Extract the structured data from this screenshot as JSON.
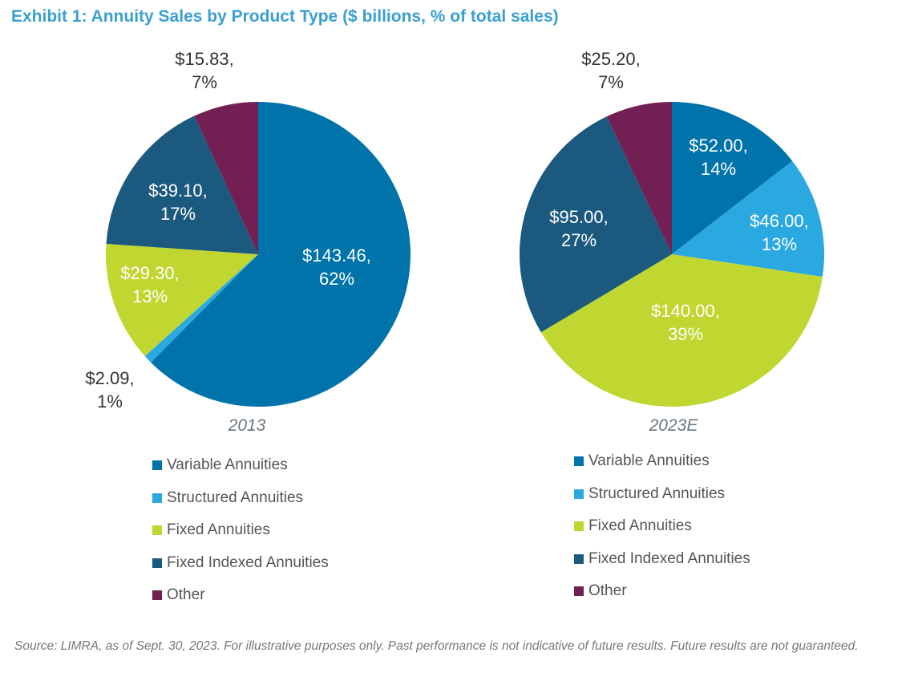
{
  "chart_data": [
    {
      "type": "pie",
      "title": "Exhibit 1: Annuity Sales by Product Type ($ billions, % of total sales)",
      "subtitle": "2013",
      "categories": [
        "Variable Annuities",
        "Structured Annuities",
        "Fixed Annuities",
        "Fixed Indexed Annuities",
        "Other"
      ],
      "values": [
        143.46,
        2.09,
        29.3,
        39.1,
        15.83
      ],
      "percents": [
        62,
        1,
        13,
        17,
        7
      ],
      "labels": [
        "$143.46,\n62%",
        "$2.09,\n1%",
        "$29.30,\n13%",
        "$39.10,\n17%",
        "$15.83,\n7%"
      ],
      "colors": [
        "#0073aa",
        "#2aa8e0",
        "#bfd730",
        "#1b5a7e",
        "#721f53"
      ],
      "legend": "bottom"
    },
    {
      "type": "pie",
      "subtitle": "2023E",
      "categories": [
        "Variable Annuities",
        "Structured Annuities",
        "Fixed Annuities",
        "Fixed Indexed Annuities",
        "Other"
      ],
      "values": [
        52.0,
        46.0,
        140.0,
        95.0,
        25.2
      ],
      "percents": [
        14,
        13,
        39,
        27,
        7
      ],
      "labels": [
        "$52.00,\n14%",
        "$46.00,\n13%",
        "$140.00,\n39%",
        "$95.00,\n27%",
        "$25.20,\n7%"
      ],
      "colors": [
        "#0073aa",
        "#2aa8e0",
        "#bfd730",
        "#1b5a7e",
        "#721f53"
      ],
      "legend": "bottom"
    }
  ],
  "title": "Exhibit 1: Annuity Sales by Product Type ($ billions, % of total sales)",
  "source": "Source: LIMRA, as of Sept. 30, 2023. For illustrative purposes only. Past performance is not indicative of future results. Future results are not guaranteed."
}
